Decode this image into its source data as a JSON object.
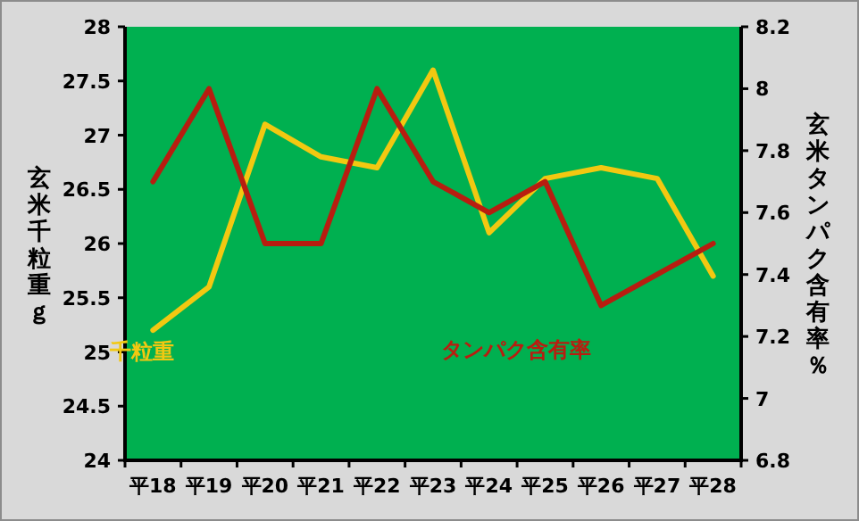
{
  "chart_data": {
    "type": "line",
    "categories": [
      "平18",
      "平19",
      "平20",
      "平21",
      "平22",
      "平23",
      "平24",
      "平25",
      "平26",
      "平27",
      "平28"
    ],
    "series": [
      {
        "name": "千粒重",
        "color": "#f2c811",
        "values": [
          25.2,
          25.6,
          27.1,
          26.8,
          26.7,
          27.6,
          26.1,
          26.6,
          26.7,
          26.6,
          25.7
        ]
      },
      {
        "name": "タンパク含有率",
        "color": "#b81d10",
        "axis": "y2",
        "values": [
          7.7,
          8.0,
          7.5,
          7.5,
          8.0,
          7.7,
          7.6,
          7.7,
          7.3,
          7.4,
          7.5
        ]
      }
    ],
    "ylabel": "玄米千粒重ｇ",
    "y2label": "玄米タンパク含有率％",
    "ylim": [
      24,
      28
    ],
    "yticks": [
      24,
      24.5,
      25,
      25.5,
      26,
      26.5,
      27,
      27.5,
      28
    ],
    "y2lim": [
      6.8,
      8.2
    ],
    "y2ticks": [
      6.8,
      7,
      7.2,
      7.4,
      7.6,
      7.8,
      8,
      8.2
    ],
    "grid": false,
    "legend": false
  }
}
